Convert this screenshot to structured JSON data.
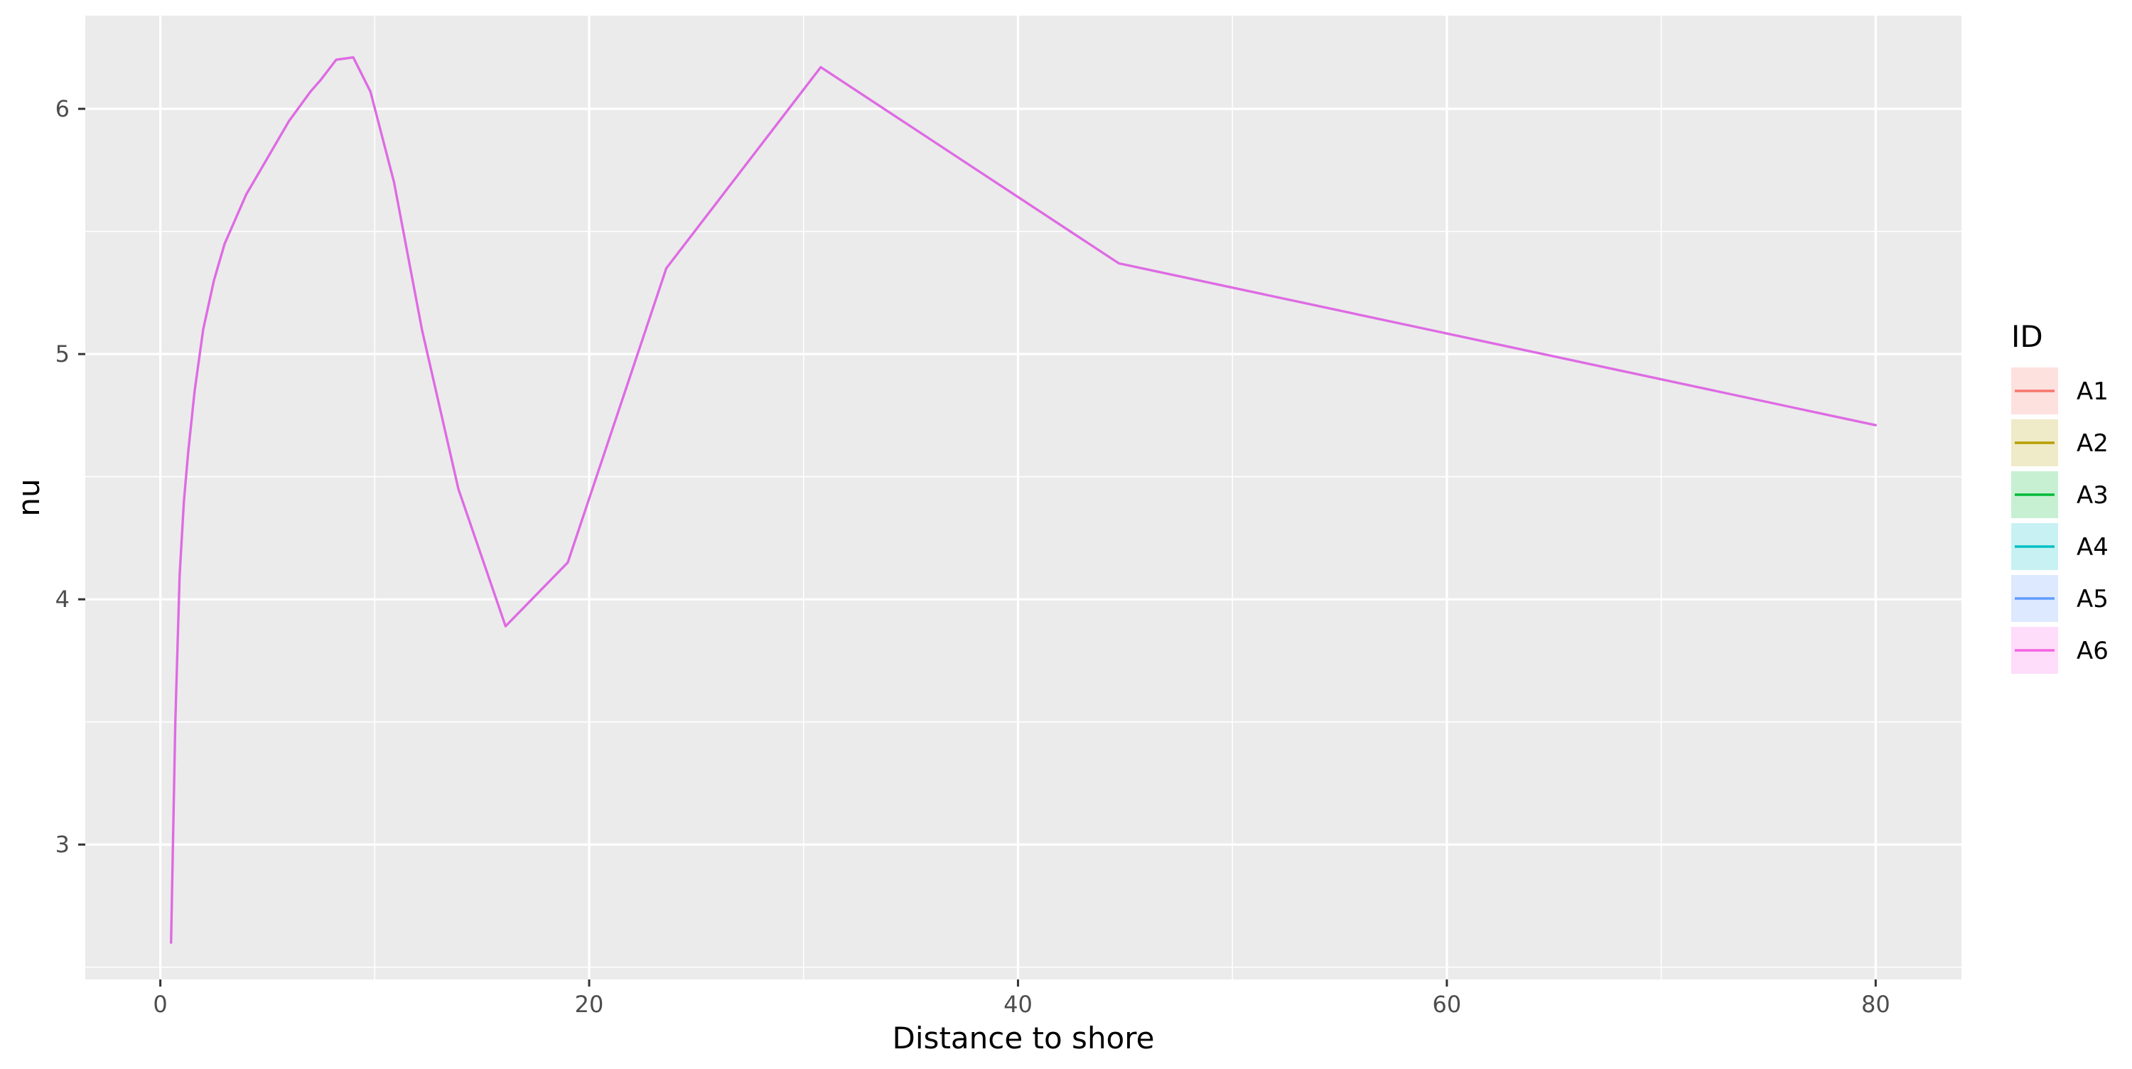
{
  "chart_data": {
    "type": "line",
    "title": "",
    "xlabel": "Distance to shore",
    "ylabel": "nu",
    "xlim": [
      -3.5,
      84
    ],
    "ylim": [
      2.45,
      6.38
    ],
    "x_ticks": [
      0,
      20,
      40,
      60,
      80
    ],
    "x_tick_labels": [
      "0",
      "20",
      "40",
      "60",
      "80"
    ],
    "y_ticks": [
      3,
      4,
      5,
      6
    ],
    "y_tick_labels": [
      "3",
      "4",
      "5",
      "6"
    ],
    "grid": true,
    "legend": {
      "title": "ID",
      "position": "right",
      "entries": [
        {
          "label": "A1",
          "color": "#F8766D"
        },
        {
          "label": "A2",
          "color": "#B79F00"
        },
        {
          "label": "A3",
          "color": "#00BA38"
        },
        {
          "label": "A4",
          "color": "#00BFC4"
        },
        {
          "label": "A5",
          "color": "#619CFF"
        },
        {
          "label": "A6",
          "color": "#F564E3"
        }
      ]
    },
    "series": [
      {
        "name": "A6",
        "color": "#DE6BE3",
        "x": [
          0.5,
          0.7,
          0.9,
          1.1,
          1.3,
          1.6,
          2.0,
          2.5,
          3.0,
          3.5,
          4.0,
          5.0,
          6.0,
          7.0,
          7.5,
          8.2,
          9.0,
          9.8,
          10.9,
          12.2,
          13.9,
          16.1,
          19.0,
          23.6,
          30.8,
          44.7,
          80.0
        ],
        "y": [
          2.6,
          3.5,
          4.1,
          4.4,
          4.6,
          4.85,
          5.1,
          5.3,
          5.45,
          5.55,
          5.65,
          5.8,
          5.95,
          6.07,
          6.12,
          6.2,
          6.21,
          6.07,
          5.7,
          5.1,
          4.45,
          3.89,
          4.15,
          5.35,
          6.17,
          5.37,
          4.71
        ]
      }
    ]
  }
}
